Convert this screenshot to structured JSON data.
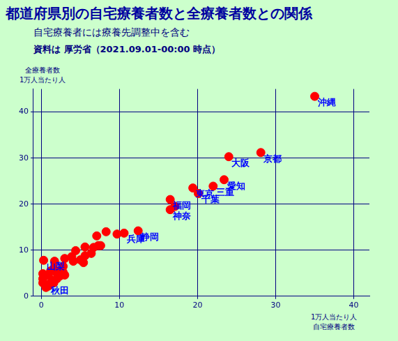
{
  "chart_data": {
    "type": "scatter",
    "title": "都道府県別の自宅療養者数と全療養者数との関係",
    "subtitle": [
      "自宅療養者には療養先調整中を含む",
      "資料は 厚労省（2021.09.01-00:00 時点）"
    ],
    "xlabel": [
      "1万人当たり人",
      "自宅療養者数"
    ],
    "ylabel": [
      "全療養者数",
      "1万人当たり人"
    ],
    "x": [
      35.0,
      28.1,
      24.0,
      23.4,
      22.0,
      19.4,
      20.1,
      16.5,
      17.1,
      16.5,
      12.4,
      10.6,
      9.7,
      8.3,
      7.6,
      7.1,
      7.3,
      6.7,
      6.4,
      5.6,
      5.6,
      5.0,
      5.4,
      4.4,
      4.1,
      3.9,
      3.0,
      2.8,
      2.6,
      1.7,
      0.3,
      1.6,
      1.9,
      2.8,
      3.0,
      2.0,
      0.9,
      0.2,
      0.2,
      0.2,
      0.9,
      1.6,
      0.9,
      1.4,
      0.6,
      2.4,
      1.2
    ],
    "values": [
      43.4,
      31.2,
      30.3,
      25.3,
      23.9,
      23.5,
      22.3,
      21.0,
      19.5,
      18.8,
      14.2,
      13.7,
      13.5,
      14.0,
      11.0,
      13.1,
      11.0,
      10.6,
      9.3,
      8.8,
      10.7,
      7.9,
      7.3,
      9.9,
      7.6,
      8.6,
      8.2,
      6.5,
      5.9,
      7.6,
      7.8,
      6.0,
      5.2,
      5.2,
      4.6,
      3.8,
      4.6,
      4.9,
      3.8,
      2.9,
      2.6,
      2.9,
      2.2,
      3.5,
      1.9,
      4.4,
      5.5
    ],
    "point_labels": [
      "沖縄",
      "京都",
      "大阪",
      "愛知",
      "三重",
      "東京",
      "千葉",
      "福岡",
      null,
      "神奈",
      "静岡",
      "兵庫",
      null,
      null,
      null,
      null,
      null,
      null,
      null,
      null,
      null,
      null,
      null,
      null,
      null,
      null,
      null,
      null,
      null,
      null,
      "山梨",
      null,
      null,
      null,
      null,
      null,
      null,
      null,
      null,
      null,
      "秋田",
      null,
      null,
      null,
      null,
      null,
      null
    ],
    "color": "#ff0000",
    "marker": "circle",
    "xlim": [
      -1,
      42
    ],
    "ylim": [
      0,
      45
    ],
    "xticks": [
      0,
      10,
      20,
      30,
      40
    ],
    "yticks": [
      0,
      10,
      20,
      30,
      40
    ],
    "grid": true
  }
}
